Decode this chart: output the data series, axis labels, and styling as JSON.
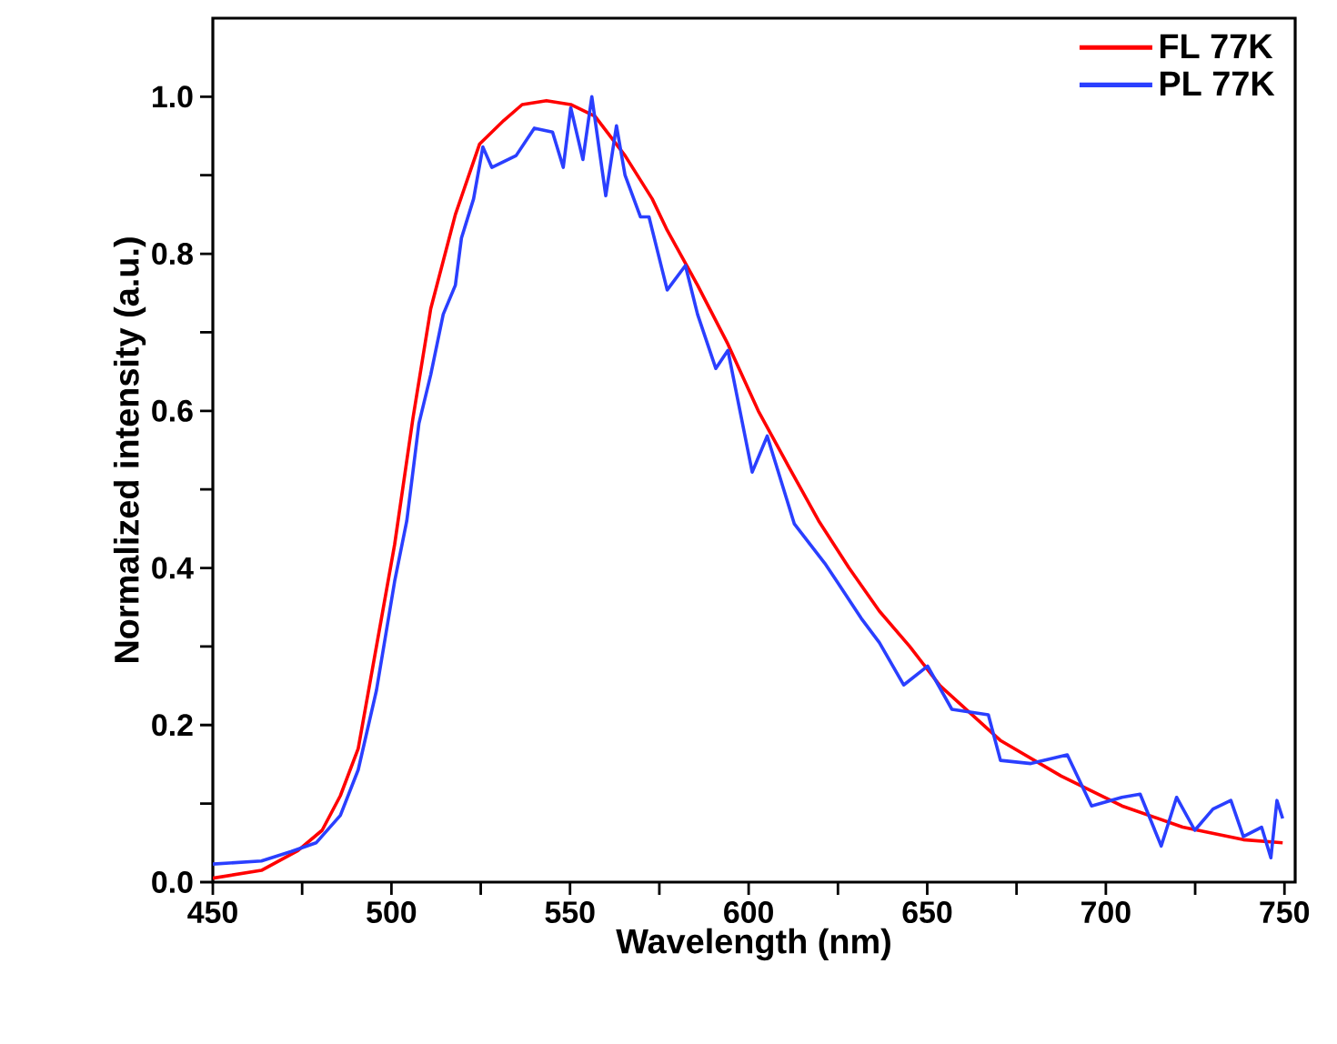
{
  "chart_data": {
    "type": "line",
    "xlabel": "Wavelength (nm)",
    "ylabel": "Normalized intensity (a.u.)",
    "xlim": [
      450,
      753
    ],
    "ylim": [
      0,
      1.1
    ],
    "xticks": [
      450,
      {
        "value": 475,
        "label": null
      },
      500,
      {
        "value": 525,
        "label": null
      },
      550,
      {
        "value": 575,
        "label": null
      },
      600,
      {
        "value": 625,
        "label": null
      },
      650,
      {
        "value": 675,
        "label": null
      },
      700,
      {
        "value": 725,
        "label": null
      },
      750
    ],
    "yticks": [
      {
        "value": 0,
        "label": "0.0"
      },
      {
        "value": 0.1,
        "label": null
      },
      0.2,
      {
        "value": 0.3,
        "label": null
      },
      0.4,
      {
        "value": 0.5,
        "label": null
      },
      0.6,
      {
        "value": 0.7,
        "label": null
      },
      0.8,
      {
        "value": 0.9,
        "label": null
      },
      {
        "value": 1,
        "label": "1.0"
      }
    ],
    "legend": "top right",
    "grid": false,
    "marker": "none",
    "line_style": "solid",
    "series": [
      {
        "name": "FL 77K",
        "color": "#ff0000",
        "x": [
          450,
          463.6,
          473.8,
          480.6,
          485.7,
          490.7,
          495.8,
          500.9,
          506,
          511,
          517.9,
          524.7,
          531.5,
          536.6,
          543.4,
          550.2,
          557,
          565.4,
          573,
          577.2,
          585.7,
          594.2,
          602.7,
          611.1,
          619.6,
          628.1,
          636.6,
          645.1,
          653.6,
          670.6,
          687.5,
          704.5,
          721.5,
          738.5,
          749.5
        ],
        "values": [
          0.005,
          0.015,
          0.04,
          0.066,
          0.11,
          0.17,
          0.3,
          0.43,
          0.59,
          0.73,
          0.85,
          0.94,
          0.97,
          0.99,
          0.995,
          0.99,
          0.975,
          0.925,
          0.87,
          0.83,
          0.76,
          0.685,
          0.6,
          0.53,
          0.46,
          0.4,
          0.345,
          0.3,
          0.25,
          0.18,
          0.135,
          0.097,
          0.07,
          0.054,
          0.05
        ]
      },
      {
        "name": "PL 77K",
        "color": "#2a3fff",
        "x": [
          450,
          463.6,
          472,
          478.9,
          485.7,
          490.7,
          495.8,
          500.9,
          504.3,
          507.7,
          511,
          514.5,
          517.9,
          519.6,
          523,
          525.6,
          528.1,
          534.9,
          540,
          545.1,
          548.1,
          550.2,
          553.6,
          556.1,
          560,
          563,
          565.4,
          569.7,
          572.1,
          577.2,
          582.3,
          585.7,
          590.8,
          594.2,
          601,
          605.2,
          612.8,
          621.3,
          624.7,
          631.5,
          636.6,
          643.4,
          650.1,
          656.9,
          667.1,
          670.5,
          679,
          689.2,
          696,
          704.5,
          709.6,
          715.5,
          719.8,
          724.9,
          730,
          735,
          738.5,
          743.6,
          746.2,
          747.9,
          749.5
        ],
        "values": [
          0.023,
          0.027,
          0.039,
          0.05,
          0.085,
          0.143,
          0.244,
          0.383,
          0.46,
          0.584,
          0.646,
          0.723,
          0.76,
          0.82,
          0.87,
          0.936,
          0.91,
          0.925,
          0.96,
          0.955,
          0.91,
          0.986,
          0.92,
          1.0,
          0.874,
          0.963,
          0.9,
          0.847,
          0.847,
          0.754,
          0.785,
          0.723,
          0.654,
          0.677,
          0.522,
          0.568,
          0.456,
          0.406,
          0.383,
          0.336,
          0.305,
          0.251,
          0.275,
          0.22,
          0.213,
          0.155,
          0.151,
          0.162,
          0.097,
          0.108,
          0.112,
          0.046,
          0.108,
          0.066,
          0.093,
          0.104,
          0.058,
          0.07,
          0.031,
          0.104,
          0.081
        ]
      }
    ]
  }
}
